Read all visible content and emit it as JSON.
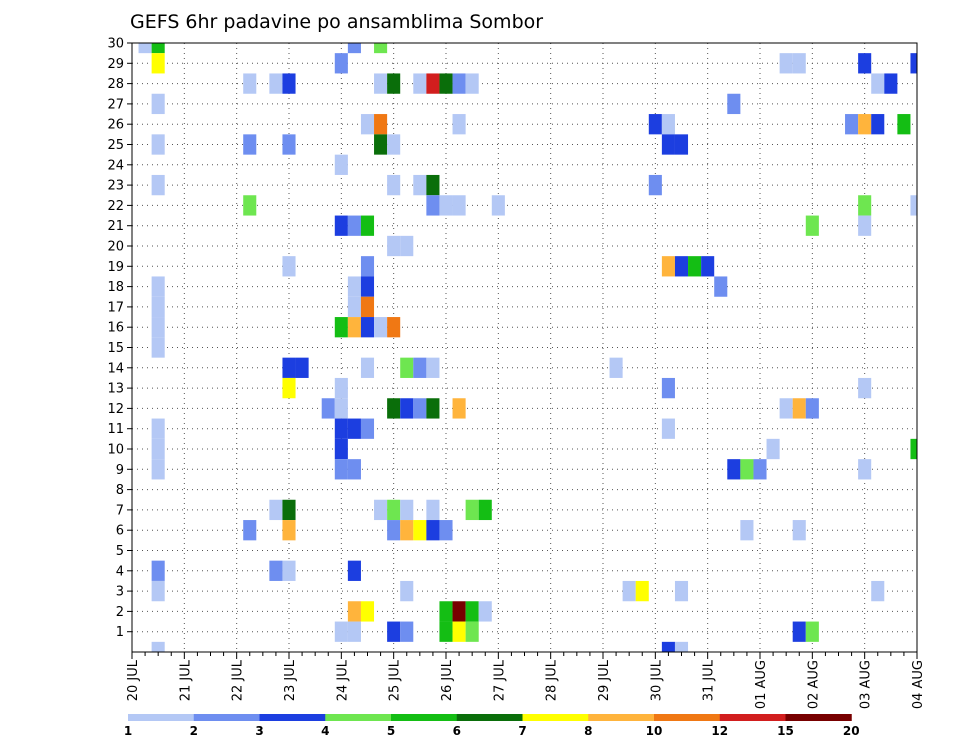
{
  "chart_data": {
    "type": "heatmap",
    "title": "GEFS 6hr padavine po ansamblima Sombor",
    "xlabel": "",
    "ylabel": "",
    "x_ticks": [
      "20 JUL",
      "21 JUL",
      "22 JUL",
      "23 JUL",
      "24 JUL",
      "25 JUL",
      "26 JUL",
      "27 JUL",
      "28 JUL",
      "29 JUL",
      "30 JUL",
      "31 JUL",
      "01 AUG",
      "02 AUG",
      "03 AUG",
      "04 AUG"
    ],
    "y_ticks": [
      1,
      2,
      3,
      4,
      5,
      6,
      7,
      8,
      9,
      10,
      11,
      12,
      13,
      14,
      15,
      16,
      17,
      18,
      19,
      20,
      21,
      22,
      23,
      24,
      25,
      26,
      27,
      28,
      29,
      30
    ],
    "xlim": [
      0,
      60
    ],
    "ylim": [
      0,
      30
    ],
    "grid": true,
    "colorbar": {
      "position": "bottom",
      "labels": [
        "1",
        "2",
        "3",
        "4",
        "5",
        "6",
        "7",
        "8",
        "10",
        "12",
        "15",
        "20"
      ],
      "colors": [
        "#b4c8f5",
        "#6e8ef0",
        "#1c3ee0",
        "#6ee650",
        "#14be14",
        "#0a6e0a",
        "#ffff00",
        "#ffb43c",
        "#f07814",
        "#d21e1e",
        "#780000"
      ]
    },
    "values_note": "cells: [x_step, member, color_index]; x_step counts 6-hour steps from 20 JUL 00Z, color_index refers to colorbar.colors",
    "cells": [
      [
        1,
        30,
        0
      ],
      [
        2,
        30,
        4
      ],
      [
        17,
        30,
        1
      ],
      [
        19,
        30,
        3
      ],
      [
        2,
        29,
        6
      ],
      [
        16,
        29,
        1
      ],
      [
        50,
        29,
        0
      ],
      [
        51,
        29,
        0
      ],
      [
        56,
        29,
        2
      ],
      [
        60,
        29,
        2
      ],
      [
        9,
        28,
        0
      ],
      [
        11,
        28,
        0
      ],
      [
        12,
        28,
        2
      ],
      [
        19,
        28,
        0
      ],
      [
        20,
        28,
        5
      ],
      [
        22,
        28,
        0
      ],
      [
        23,
        28,
        9
      ],
      [
        24,
        28,
        5
      ],
      [
        25,
        28,
        1
      ],
      [
        26,
        28,
        0
      ],
      [
        57,
        28,
        0
      ],
      [
        58,
        28,
        2
      ],
      [
        2,
        27,
        0
      ],
      [
        46,
        27,
        1
      ],
      [
        18,
        26,
        0
      ],
      [
        19,
        26,
        8
      ],
      [
        25,
        26,
        0
      ],
      [
        40,
        26,
        2
      ],
      [
        41,
        26,
        0
      ],
      [
        55,
        26,
        1
      ],
      [
        56,
        26,
        7
      ],
      [
        57,
        26,
        2
      ],
      [
        59,
        26,
        4
      ],
      [
        2,
        25,
        0
      ],
      [
        9,
        25,
        1
      ],
      [
        12,
        25,
        1
      ],
      [
        19,
        25,
        5
      ],
      [
        20,
        25,
        0
      ],
      [
        41,
        25,
        2
      ],
      [
        42,
        25,
        2
      ],
      [
        16,
        24,
        0
      ],
      [
        2,
        23,
        0
      ],
      [
        20,
        23,
        0
      ],
      [
        22,
        23,
        0
      ],
      [
        23,
        23,
        5
      ],
      [
        40,
        23,
        1
      ],
      [
        9,
        22,
        3
      ],
      [
        23,
        22,
        1
      ],
      [
        24,
        22,
        0
      ],
      [
        25,
        22,
        0
      ],
      [
        28,
        22,
        0
      ],
      [
        56,
        22,
        3
      ],
      [
        60,
        22,
        0
      ],
      [
        16,
        21,
        2
      ],
      [
        17,
        21,
        1
      ],
      [
        18,
        21,
        4
      ],
      [
        52,
        21,
        3
      ],
      [
        56,
        21,
        0
      ],
      [
        20,
        20,
        0
      ],
      [
        21,
        20,
        0
      ],
      [
        12,
        19,
        0
      ],
      [
        18,
        19,
        1
      ],
      [
        41,
        19,
        7
      ],
      [
        42,
        19,
        2
      ],
      [
        43,
        19,
        4
      ],
      [
        44,
        19,
        2
      ],
      [
        2,
        18,
        0
      ],
      [
        17,
        18,
        0
      ],
      [
        18,
        18,
        2
      ],
      [
        45,
        18,
        1
      ],
      [
        2,
        17,
        0
      ],
      [
        17,
        17,
        0
      ],
      [
        18,
        17,
        8
      ],
      [
        2,
        16,
        0
      ],
      [
        16,
        16,
        4
      ],
      [
        17,
        16,
        7
      ],
      [
        18,
        16,
        2
      ],
      [
        19,
        16,
        0
      ],
      [
        20,
        16,
        8
      ],
      [
        2,
        15,
        0
      ],
      [
        12,
        14,
        2
      ],
      [
        13,
        14,
        2
      ],
      [
        18,
        14,
        0
      ],
      [
        21,
        14,
        3
      ],
      [
        22,
        14,
        1
      ],
      [
        23,
        14,
        0
      ],
      [
        37,
        14,
        0
      ],
      [
        12,
        13,
        6
      ],
      [
        16,
        13,
        0
      ],
      [
        41,
        13,
        1
      ],
      [
        56,
        13,
        0
      ],
      [
        15,
        12,
        1
      ],
      [
        16,
        12,
        0
      ],
      [
        20,
        12,
        5
      ],
      [
        21,
        12,
        2
      ],
      [
        22,
        12,
        1
      ],
      [
        23,
        12,
        5
      ],
      [
        25,
        12,
        7
      ],
      [
        50,
        12,
        0
      ],
      [
        51,
        12,
        7
      ],
      [
        52,
        12,
        1
      ],
      [
        2,
        11,
        0
      ],
      [
        16,
        11,
        2
      ],
      [
        17,
        11,
        2
      ],
      [
        18,
        11,
        1
      ],
      [
        41,
        11,
        0
      ],
      [
        2,
        10,
        0
      ],
      [
        16,
        10,
        2
      ],
      [
        49,
        10,
        0
      ],
      [
        60,
        10,
        4
      ],
      [
        2,
        9,
        0
      ],
      [
        16,
        9,
        1
      ],
      [
        17,
        9,
        1
      ],
      [
        46,
        9,
        2
      ],
      [
        47,
        9,
        3
      ],
      [
        48,
        9,
        1
      ],
      [
        56,
        9,
        0
      ],
      [
        11,
        7,
        0
      ],
      [
        12,
        7,
        5
      ],
      [
        19,
        7,
        0
      ],
      [
        20,
        7,
        3
      ],
      [
        21,
        7,
        0
      ],
      [
        23,
        7,
        0
      ],
      [
        26,
        7,
        3
      ],
      [
        27,
        7,
        4
      ],
      [
        9,
        6,
        1
      ],
      [
        12,
        6,
        7
      ],
      [
        20,
        6,
        1
      ],
      [
        21,
        6,
        7
      ],
      [
        22,
        6,
        6
      ],
      [
        23,
        6,
        2
      ],
      [
        24,
        6,
        1
      ],
      [
        47,
        6,
        0
      ],
      [
        51,
        6,
        0
      ],
      [
        2,
        4,
        1
      ],
      [
        11,
        4,
        1
      ],
      [
        12,
        4,
        0
      ],
      [
        17,
        4,
        2
      ],
      [
        2,
        3,
        0
      ],
      [
        21,
        3,
        0
      ],
      [
        38,
        3,
        0
      ],
      [
        39,
        3,
        6
      ],
      [
        42,
        3,
        0
      ],
      [
        57,
        3,
        0
      ],
      [
        17,
        2,
        7
      ],
      [
        18,
        2,
        6
      ],
      [
        24,
        2,
        4
      ],
      [
        25,
        2,
        10
      ],
      [
        26,
        2,
        4
      ],
      [
        27,
        2,
        0
      ],
      [
        16,
        1,
        0
      ],
      [
        17,
        1,
        0
      ],
      [
        20,
        1,
        2
      ],
      [
        21,
        1,
        1
      ],
      [
        24,
        1,
        4
      ],
      [
        25,
        1,
        6
      ],
      [
        26,
        1,
        3
      ],
      [
        51,
        1,
        2
      ],
      [
        52,
        1,
        3
      ],
      [
        2,
        0,
        0
      ],
      [
        41,
        0,
        2
      ],
      [
        42,
        0,
        0
      ]
    ]
  }
}
